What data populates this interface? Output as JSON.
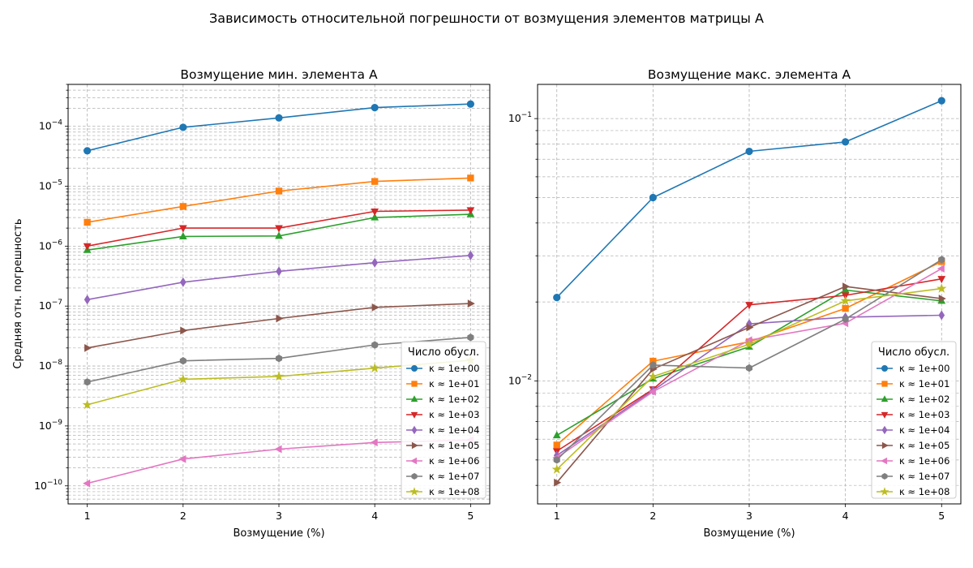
{
  "figure": {
    "title": "Зависимость относительной погрешности от возмущения элементов матрицы A"
  },
  "chart_data": [
    {
      "type": "line",
      "title": "Возмущение мин. элемента A",
      "xlabel": "Возмущение (%)",
      "ylabel": "Средняя отн. погрешность",
      "yscale": "log",
      "grid": true,
      "xlim": [
        0.8,
        5.2
      ],
      "ylim": [
        5e-11,
        0.0005
      ],
      "x": [
        1,
        2,
        3,
        4,
        5
      ],
      "xticks": [
        "1",
        "2",
        "3",
        "4",
        "5"
      ],
      "yticks": [
        {
          "value": 1e-10,
          "exp": "−10"
        },
        {
          "value": 1e-09,
          "exp": "−9"
        },
        {
          "value": 1e-08,
          "exp": "−8"
        },
        {
          "value": 1e-07,
          "exp": "−7"
        },
        {
          "value": 1e-06,
          "exp": "−6"
        },
        {
          "value": 1e-05,
          "exp": "−5"
        },
        {
          "value": 0.0001,
          "exp": "−4"
        }
      ],
      "legend": {
        "title": "Число обусл.",
        "position": "lower-right"
      },
      "series": [
        {
          "name": "κ ≈ 1e+00",
          "values": [
            3.9e-05,
            9.6e-05,
            0.000138,
            0.000205,
            0.000235
          ]
        },
        {
          "name": "κ ≈ 1e+01",
          "values": [
            2.5e-06,
            4.6e-06,
            8.3e-06,
            1.2e-05,
            1.37e-05
          ]
        },
        {
          "name": "κ ≈ 1e+02",
          "values": [
            8.6e-07,
            1.45e-06,
            1.48e-06,
            3e-06,
            3.4e-06
          ]
        },
        {
          "name": "κ ≈ 1e+03",
          "values": [
            1e-06,
            2e-06,
            2e-06,
            3.8e-06,
            4e-06
          ]
        },
        {
          "name": "κ ≈ 1e+04",
          "values": [
            1.28e-07,
            2.5e-07,
            3.8e-07,
            5.3e-07,
            7e-07
          ]
        },
        {
          "name": "κ ≈ 1e+05",
          "values": [
            2e-08,
            3.9e-08,
            6.2e-08,
            9.5e-08,
            1.1e-07
          ]
        },
        {
          "name": "κ ≈ 1e+06",
          "values": [
            1.1e-10,
            2.8e-10,
            4.1e-10,
            5.3e-10,
            5.8e-10
          ]
        },
        {
          "name": "κ ≈ 1e+07",
          "values": [
            5.4e-09,
            1.22e-08,
            1.34e-08,
            2.25e-08,
            3e-08
          ]
        },
        {
          "name": "κ ≈ 1e+08",
          "values": [
            2.25e-09,
            6e-09,
            6.7e-09,
            9.2e-09,
            1.25e-08
          ]
        }
      ]
    },
    {
      "type": "line",
      "title": "Возмущение макс. элемента A",
      "xlabel": "Возмущение (%)",
      "ylabel": "",
      "yscale": "log",
      "grid": true,
      "xlim": [
        0.8,
        5.2
      ],
      "ylim": [
        0.0034,
        0.135
      ],
      "x": [
        1,
        2,
        3,
        4,
        5
      ],
      "xticks": [
        "1",
        "2",
        "3",
        "4",
        "5"
      ],
      "yticks": [
        {
          "value": 0.01,
          "exp": "−2"
        },
        {
          "value": 0.1,
          "exp": "−1"
        }
      ],
      "legend": {
        "title": "Число обусл.",
        "position": "lower-right"
      },
      "series": [
        {
          "name": "κ ≈ 1e+00",
          "values": [
            0.0208,
            0.05,
            0.075,
            0.0815,
            0.117
          ]
        },
        {
          "name": "κ ≈ 1e+01",
          "values": [
            0.0057,
            0.0119,
            0.0141,
            0.0189,
            0.0285
          ]
        },
        {
          "name": "κ ≈ 1e+02",
          "values": [
            0.0062,
            0.0102,
            0.0135,
            0.0222,
            0.0202
          ]
        },
        {
          "name": "κ ≈ 1e+03",
          "values": [
            0.0054,
            0.0093,
            0.0195,
            0.0212,
            0.0245
          ]
        },
        {
          "name": "κ ≈ 1e+04",
          "values": [
            0.0052,
            0.0092,
            0.0165,
            0.0175,
            0.0178
          ]
        },
        {
          "name": "κ ≈ 1e+05",
          "values": [
            0.0041,
            0.0111,
            0.016,
            0.0229,
            0.0206
          ]
        },
        {
          "name": "κ ≈ 1e+06",
          "values": [
            0.0051,
            0.0091,
            0.0143,
            0.0166,
            0.0268
          ]
        },
        {
          "name": "κ ≈ 1e+07",
          "values": [
            0.005,
            0.0115,
            0.0112,
            0.0172,
            0.029
          ]
        },
        {
          "name": "κ ≈ 1e+08",
          "values": [
            0.0046,
            0.0104,
            0.0138,
            0.0202,
            0.0225
          ]
        }
      ]
    }
  ],
  "styles": {
    "colors": [
      "#1f77b4",
      "#ff7f0e",
      "#2ca02c",
      "#d62728",
      "#9467bd",
      "#8c564b",
      "#e377c2",
      "#7f7f7f",
      "#bcbd22"
    ],
    "markers": [
      "circle",
      "square",
      "triangle-up",
      "triangle-down",
      "diamond",
      "triangle-right",
      "triangle-left",
      "hexagon",
      "star"
    ],
    "grid_color": "#b0b0b0",
    "axis_color": "#000000"
  }
}
